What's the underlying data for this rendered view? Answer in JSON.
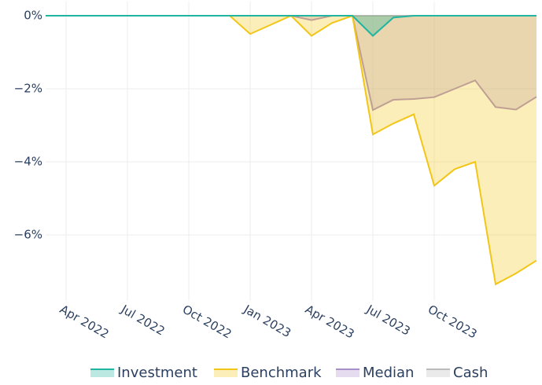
{
  "chart_data": {
    "type": "area",
    "x": [
      "2022-03",
      "2022-04",
      "2022-05",
      "2022-06",
      "2022-07",
      "2022-08",
      "2022-09",
      "2022-10",
      "2022-11",
      "2022-12",
      "2023-01",
      "2023-02",
      "2023-03",
      "2023-04",
      "2023-05",
      "2023-06",
      "2023-07",
      "2023-08",
      "2023-09",
      "2023-10",
      "2023-11",
      "2023-12",
      "2024-01",
      "2024-02",
      "2024-03"
    ],
    "series": [
      {
        "name": "Cash",
        "color": "#bbbbbb",
        "values": [
          0,
          0,
          0,
          0,
          0,
          0,
          0,
          0,
          0,
          0,
          0,
          0,
          0,
          0,
          0,
          0,
          0,
          0,
          0,
          0,
          0,
          0,
          0,
          0,
          0
        ]
      },
      {
        "name": "Median",
        "color": "#a98fc9",
        "values": [
          0,
          0,
          0,
          0,
          0,
          0,
          0,
          0,
          0,
          0,
          0,
          0,
          0,
          -0.12,
          0,
          0,
          -2.58,
          -2.3,
          -2.28,
          -2.23,
          -2,
          -1.77,
          -2.5,
          -2.57,
          -2.22
        ]
      },
      {
        "name": "Benchmark",
        "color": "#f2c618",
        "values": [
          0,
          0,
          0,
          0,
          0,
          0,
          0,
          0,
          0,
          0,
          -0.5,
          -0.25,
          0,
          -0.55,
          -0.2,
          0,
          -3.25,
          -2.95,
          -2.7,
          -4.65,
          -4.2,
          -4,
          -7.35,
          -7.05,
          -6.7
        ]
      },
      {
        "name": "Investment",
        "color": "#1fb5a0",
        "values": [
          0,
          0,
          0,
          0,
          0,
          0,
          0,
          0,
          0,
          0,
          0,
          0,
          0,
          0,
          0,
          0,
          -0.55,
          -0.05,
          0,
          0,
          0,
          0,
          0,
          0,
          0
        ]
      }
    ],
    "legend_order": [
      "Investment",
      "Benchmark",
      "Median",
      "Cash"
    ],
    "xlim": [
      "2022-03",
      "2024-03"
    ],
    "xticks": [
      {
        "value": "2022-04",
        "label": "Apr 2022"
      },
      {
        "value": "2022-07",
        "label": "Jul 2022"
      },
      {
        "value": "2022-10",
        "label": "Oct 2022"
      },
      {
        "value": "2023-01",
        "label": "Jan 2023"
      },
      {
        "value": "2023-04",
        "label": "Apr 2023"
      },
      {
        "value": "2023-07",
        "label": "Jul 2023"
      },
      {
        "value": "2023-10",
        "label": "Oct 2023"
      }
    ],
    "ylim": [
      -7.8,
      0.4
    ],
    "yticks": [
      {
        "value": 0,
        "label": "0%"
      },
      {
        "value": -2,
        "label": "−2%"
      },
      {
        "value": -4,
        "label": "−4%"
      },
      {
        "value": -6,
        "label": "−6%"
      }
    ],
    "grid": true,
    "legend": "bottom"
  }
}
